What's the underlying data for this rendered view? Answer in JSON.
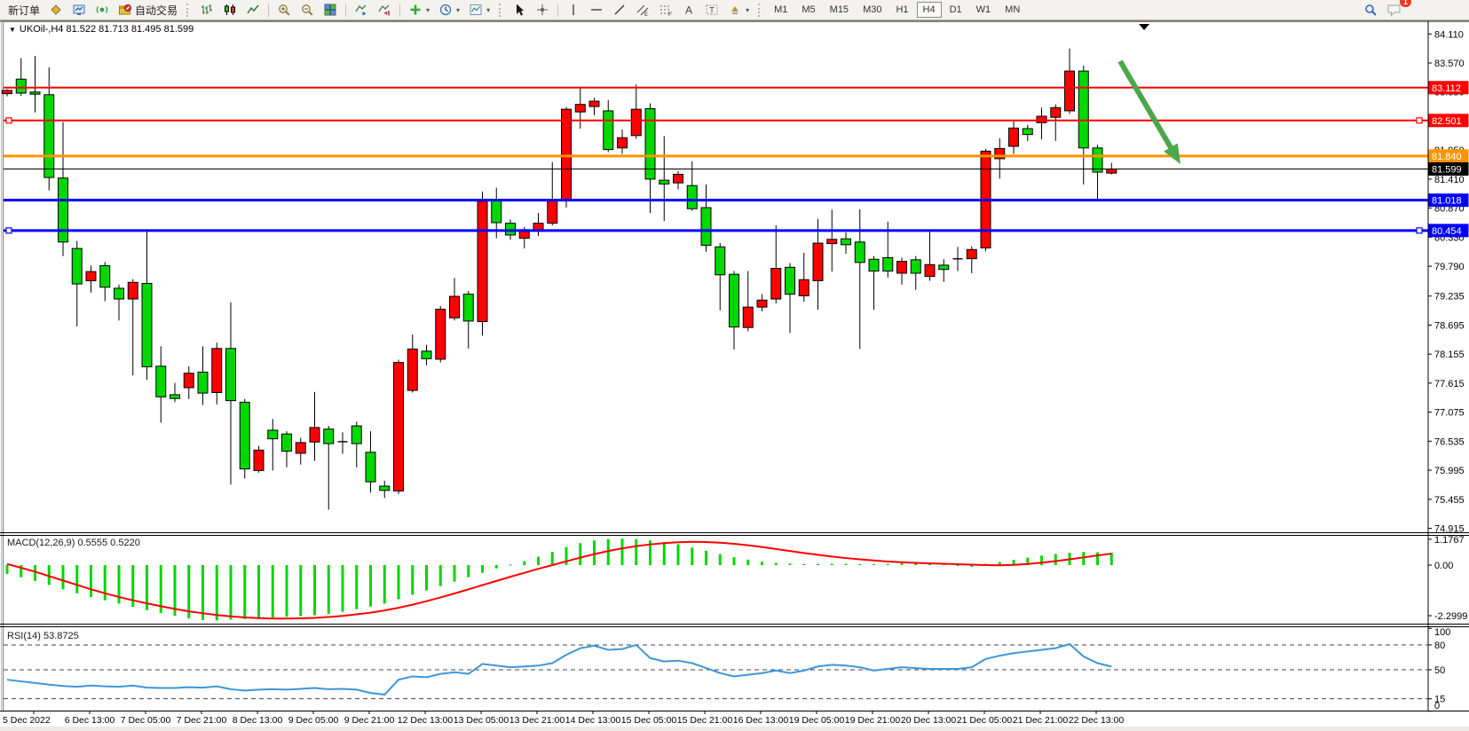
{
  "toolbar": {
    "items": [
      {
        "n": "new-order-button",
        "l": "新订单"
      },
      {
        "n": "market-watch-icon",
        "i": "market-watch-icon"
      },
      {
        "n": "data-window-icon",
        "i": "data-window-icon"
      },
      {
        "n": "signals-icon",
        "i": "signals-icon"
      },
      {
        "n": "auto-trading-button",
        "i": "auto-trading-icon",
        "l": "自动交易"
      },
      {
        "t": "grip"
      },
      {
        "n": "bar-chart-button",
        "i": "bar-chart-icon"
      },
      {
        "n": "candlestick-chart-button",
        "i": "candlestick-chart-icon"
      },
      {
        "n": "line-chart-button",
        "i": "line-chart-icon"
      },
      {
        "t": "sep"
      },
      {
        "n": "zoom-in-button",
        "i": "zoom-in-icon"
      },
      {
        "n": "zoom-out-button",
        "i": "zoom-out-icon"
      },
      {
        "n": "tile-windows-button",
        "i": "tile-windows-icon"
      },
      {
        "t": "sep"
      },
      {
        "n": "auto-scroll-button",
        "i": "auto-scroll-icon"
      },
      {
        "n": "chart-shift-button",
        "i": "chart-shift-icon"
      },
      {
        "t": "sep"
      },
      {
        "n": "indicators-button",
        "i": "indicators-icon",
        "d": true
      },
      {
        "n": "periods-button",
        "i": "clock-icon",
        "d": true
      },
      {
        "n": "templates-button",
        "i": "template-icon",
        "d": true
      },
      {
        "t": "grip"
      },
      {
        "n": "cursor-button",
        "i": "cursor-icon"
      },
      {
        "n": "crosshair-button",
        "i": "crosshair-icon"
      },
      {
        "t": "sep"
      },
      {
        "n": "vertical-line-button",
        "i": "vertical-line-icon"
      },
      {
        "n": "horizontal-line-button",
        "i": "horizontal-line-icon"
      },
      {
        "n": "trendline-button",
        "i": "trendline-icon"
      },
      {
        "n": "equidistant-channel-button",
        "i": "equidistant-channel-icon"
      },
      {
        "n": "fibonacci-button",
        "i": "fibonacci-icon"
      },
      {
        "n": "text-button",
        "i": "text-icon"
      },
      {
        "n": "label-button",
        "i": "label-icon"
      },
      {
        "n": "arrows-button",
        "i": "arrows-icon",
        "d": true
      },
      {
        "t": "grip"
      }
    ],
    "timeframes": [
      "M1",
      "M5",
      "M15",
      "M30",
      "H1",
      "H4",
      "D1",
      "W1",
      "MN"
    ],
    "active_timeframe": "H4",
    "right_items": [
      {
        "n": "search-button",
        "i": "search-icon"
      },
      {
        "n": "chat-button",
        "i": "chat-icon",
        "badge": true
      }
    ],
    "notification_count": "1"
  },
  "chart": {
    "title": "UKOil-,H4 81.522 81.713 81.495 81.599",
    "symbol": "UKOil-",
    "timeframe": "H4",
    "open": "81.522",
    "high": "81.713",
    "low": "81.495",
    "close": "81.599"
  },
  "indicators": {
    "macd": {
      "label": "MACD(12,26,9) 0.5555 0.5220",
      "main": 0.5555,
      "signal": 0.522,
      "axis": [
        {
          "v": 1.1767,
          "t": "1.1767"
        },
        {
          "v": 0,
          "t": "0.00"
        },
        {
          "v": -2.2999,
          "t": "-2.2999"
        }
      ]
    },
    "rsi": {
      "label": "RSI(14) 53.8725",
      "value": 53.8725,
      "axis": [
        {
          "v": 100,
          "t": "100",
          "dash": false
        },
        {
          "v": 80,
          "t": "80",
          "dash": true
        },
        {
          "v": 50,
          "t": "50",
          "dash": true
        },
        {
          "v": 15,
          "t": "15",
          "dash": true
        },
        {
          "v": 0,
          "t": "0",
          "dash": false
        }
      ]
    }
  },
  "hlines": [
    {
      "price": 83.112,
      "label": "83.112",
      "color": "#ff0000",
      "width": 2,
      "selected": false
    },
    {
      "price": 82.501,
      "label": "82.501",
      "color": "#ff0000",
      "width": 2,
      "selected": true
    },
    {
      "price": 81.84,
      "label": "81.840",
      "color": "#ff9400",
      "width": 3,
      "selected": false
    },
    {
      "price": 81.599,
      "label": "81.599",
      "color": "#000000",
      "width": 1,
      "selected": false
    },
    {
      "price": 81.018,
      "label": "81.018",
      "color": "#0000ff",
      "width": 3,
      "selected": false
    },
    {
      "price": 80.454,
      "label": "80.454",
      "color": "#0000ff",
      "width": 3,
      "selected": true
    }
  ],
  "price_ticks": [
    "84.110",
    "83.570",
    "83.030",
    "81.950",
    "81.410",
    "80.870",
    "80.330",
    "79.790",
    "79.235",
    "78.695",
    "78.155",
    "77.615",
    "77.075",
    "76.535",
    "75.995",
    "75.455",
    "74.915"
  ],
  "chart_data": [
    {
      "type": "candlestick",
      "symbol": "UKOil-",
      "timeframe": "H4",
      "title": "UKOil-,H4 81.522 81.713 81.495 81.599",
      "ylim": [
        74.84,
        84.35
      ],
      "y_ticks": [
        84.11,
        83.57,
        83.03,
        81.95,
        81.41,
        80.87,
        80.33,
        79.79,
        79.235,
        78.695,
        78.155,
        77.615,
        77.075,
        76.535,
        75.995,
        75.455,
        74.915
      ],
      "x_labels": [
        "5 Dec 2022",
        "6 Dec 13:00",
        "7 Dec 05:00",
        "7 Dec 21:00",
        "8 Dec 13:00",
        "9 Dec 05:00",
        "9 Dec 21:00",
        "12 Dec 13:00",
        "13 Dec 05:00",
        "13 Dec 21:00",
        "14 Dec 13:00",
        "15 Dec 05:00",
        "15 Dec 21:00",
        "16 Dec 13:00",
        "19 Dec 05:00",
        "19 Dec 21:00",
        "20 Dec 13:00",
        "21 Dec 05:00",
        "21 Dec 21:00",
        "22 Dec 13:00"
      ],
      "colors": {
        "up": "#ff0000",
        "down": "#00d800",
        "wick": "#000000"
      },
      "horizontal_lines": [
        83.112,
        82.501,
        81.84,
        81.599,
        81.018,
        80.454
      ],
      "candles": [
        [
          83.0,
          83.08,
          82.95,
          83.06
        ],
        [
          83.27,
          83.66,
          82.96,
          83.01
        ],
        [
          83.03,
          83.7,
          82.65,
          82.99
        ],
        [
          82.98,
          83.49,
          81.2,
          81.44
        ],
        [
          81.43,
          82.47,
          79.98,
          80.24
        ],
        [
          80.12,
          80.26,
          78.67,
          79.46
        ],
        [
          79.52,
          79.8,
          79.3,
          79.69
        ],
        [
          79.8,
          79.87,
          79.14,
          79.4
        ],
        [
          79.38,
          79.45,
          78.78,
          79.18
        ],
        [
          79.18,
          79.55,
          77.76,
          79.49
        ],
        [
          79.47,
          80.44,
          77.68,
          77.92
        ],
        [
          77.93,
          78.3,
          76.88,
          77.36
        ],
        [
          77.4,
          77.62,
          77.26,
          77.33
        ],
        [
          77.53,
          77.93,
          77.32,
          77.8
        ],
        [
          77.82,
          78.3,
          77.21,
          77.43
        ],
        [
          77.44,
          78.37,
          77.22,
          78.26
        ],
        [
          78.26,
          79.12,
          75.73,
          77.29
        ],
        [
          77.26,
          77.32,
          75.84,
          76.02
        ],
        [
          75.99,
          76.45,
          75.95,
          76.37
        ],
        [
          76.74,
          76.95,
          75.99,
          76.58
        ],
        [
          76.67,
          76.72,
          76.05,
          76.35
        ],
        [
          76.31,
          76.6,
          76.1,
          76.51
        ],
        [
          76.52,
          77.45,
          76.17,
          76.79
        ],
        [
          76.76,
          76.82,
          75.26,
          76.49
        ],
        [
          76.53,
          76.7,
          76.3,
          76.53
        ],
        [
          76.82,
          76.9,
          76.05,
          76.49
        ],
        [
          76.33,
          76.72,
          75.58,
          75.78
        ],
        [
          75.7,
          75.8,
          75.48,
          75.62
        ],
        [
          75.61,
          78.05,
          75.55,
          78.0
        ],
        [
          77.48,
          78.52,
          77.44,
          78.25
        ],
        [
          78.21,
          78.33,
          77.95,
          78.07
        ],
        [
          78.06,
          79.05,
          78.0,
          78.99
        ],
        [
          78.83,
          79.57,
          78.78,
          79.23
        ],
        [
          79.27,
          79.33,
          78.26,
          78.77
        ],
        [
          78.76,
          81.18,
          78.5,
          81.0
        ],
        [
          81.02,
          81.25,
          80.31,
          80.6
        ],
        [
          80.59,
          80.66,
          80.28,
          80.37
        ],
        [
          80.31,
          80.52,
          80.12,
          80.47
        ],
        [
          80.45,
          80.78,
          80.35,
          80.59
        ],
        [
          80.59,
          81.73,
          80.55,
          81.02
        ],
        [
          81.02,
          82.75,
          80.88,
          82.71
        ],
        [
          82.66,
          83.13,
          82.35,
          82.8
        ],
        [
          82.76,
          82.92,
          82.6,
          82.86
        ],
        [
          82.68,
          82.88,
          81.91,
          81.96
        ],
        [
          81.99,
          82.33,
          81.88,
          82.18
        ],
        [
          82.22,
          83.17,
          82.16,
          82.71
        ],
        [
          82.72,
          82.82,
          80.78,
          81.41
        ],
        [
          81.39,
          82.21,
          80.63,
          81.32
        ],
        [
          81.34,
          81.56,
          81.22,
          81.5
        ],
        [
          81.29,
          81.74,
          80.82,
          80.86
        ],
        [
          80.88,
          81.31,
          80.06,
          80.18
        ],
        [
          80.15,
          80.22,
          78.97,
          79.63
        ],
        [
          79.64,
          79.7,
          78.24,
          78.66
        ],
        [
          78.65,
          79.7,
          78.58,
          79.03
        ],
        [
          79.03,
          79.27,
          78.95,
          79.16
        ],
        [
          79.18,
          80.55,
          79.1,
          79.75
        ],
        [
          79.77,
          79.85,
          78.55,
          79.27
        ],
        [
          79.24,
          80.04,
          79.13,
          79.54
        ],
        [
          79.52,
          80.67,
          78.98,
          80.22
        ],
        [
          80.21,
          80.84,
          79.69,
          80.29
        ],
        [
          80.3,
          80.42,
          80.02,
          80.19
        ],
        [
          80.24,
          80.85,
          78.25,
          79.86
        ],
        [
          79.92,
          79.98,
          78.98,
          79.7
        ],
        [
          79.95,
          80.62,
          79.58,
          79.7
        ],
        [
          79.66,
          79.95,
          79.45,
          79.88
        ],
        [
          79.91,
          79.98,
          79.35,
          79.66
        ],
        [
          79.6,
          80.43,
          79.52,
          79.82
        ],
        [
          79.81,
          79.92,
          79.5,
          79.73
        ],
        [
          79.93,
          80.15,
          79.7,
          79.93
        ],
        [
          79.93,
          80.16,
          79.66,
          80.1
        ],
        [
          80.13,
          81.97,
          80.07,
          81.93
        ],
        [
          81.79,
          82.17,
          81.42,
          81.98
        ],
        [
          82.02,
          82.5,
          81.88,
          82.36
        ],
        [
          82.35,
          82.42,
          82.12,
          82.24
        ],
        [
          82.46,
          82.74,
          82.15,
          82.58
        ],
        [
          82.56,
          82.8,
          82.12,
          82.74
        ],
        [
          82.68,
          83.84,
          82.62,
          83.42
        ],
        [
          83.42,
          83.52,
          81.31,
          81.99
        ],
        [
          81.99,
          82.05,
          81.03,
          81.54
        ],
        [
          81.522,
          81.713,
          81.495,
          81.599
        ]
      ],
      "annotations": [
        {
          "type": "arrow",
          "from": [
            1262,
            69
          ],
          "to": [
            1330,
            185
          ],
          "color": "#4ca64c"
        },
        {
          "type": "shift-marker",
          "x": 1289,
          "y": 30
        }
      ]
    },
    {
      "type": "bar",
      "name": "MACD(12,26,9)",
      "last_main": 0.5555,
      "last_signal": 0.522,
      "axis_ticks": [
        1.1767,
        0,
        -2.2999
      ],
      "ylim": [
        -2.66,
        1.41
      ],
      "colors": {
        "bar": "#00d800",
        "signal": "#ff0000"
      },
      "values": [
        -0.4,
        -0.55,
        -0.72,
        -0.9,
        -1.1,
        -1.28,
        -1.45,
        -1.6,
        -1.75,
        -1.9,
        -2.05,
        -2.18,
        -2.3,
        -2.42,
        -2.5,
        -2.52,
        -2.48,
        -2.45,
        -2.42,
        -2.38,
        -2.35,
        -2.32,
        -2.28,
        -2.22,
        -2.12,
        -2.0,
        -1.88,
        -1.75,
        -1.55,
        -1.35,
        -1.15,
        -0.95,
        -0.75,
        -0.55,
        -0.35,
        -0.15,
        0.02,
        0.18,
        0.38,
        0.6,
        0.82,
        1.0,
        1.12,
        1.18,
        1.2,
        1.18,
        1.12,
        1.05,
        0.95,
        0.8,
        0.65,
        0.5,
        0.36,
        0.25,
        0.16,
        0.1,
        0.07,
        0.05,
        0.05,
        0.06,
        0.06,
        0.05,
        0.04,
        0.05,
        0.08,
        0.1,
        0.08,
        0.05,
        -0.04,
        -0.08,
        0.06,
        0.14,
        0.24,
        0.34,
        0.43,
        0.5,
        0.56,
        0.6,
        0.58,
        0.5555
      ],
      "signal": [
        0.05,
        -0.12,
        -0.3,
        -0.5,
        -0.7,
        -0.9,
        -1.1,
        -1.28,
        -1.45,
        -1.6,
        -1.74,
        -1.87,
        -1.99,
        -2.1,
        -2.19,
        -2.27,
        -2.33,
        -2.38,
        -2.41,
        -2.43,
        -2.43,
        -2.42,
        -2.4,
        -2.36,
        -2.31,
        -2.24,
        -2.16,
        -2.06,
        -1.94,
        -1.8,
        -1.64,
        -1.47,
        -1.29,
        -1.1,
        -0.91,
        -0.72,
        -0.53,
        -0.35,
        -0.17,
        0.0,
        0.17,
        0.34,
        0.5,
        0.64,
        0.76,
        0.86,
        0.94,
        1.0,
        1.04,
        1.06,
        1.05,
        1.02,
        0.97,
        0.9,
        0.82,
        0.73,
        0.64,
        0.55,
        0.47,
        0.39,
        0.32,
        0.26,
        0.21,
        0.16,
        0.13,
        0.1,
        0.08,
        0.06,
        0.04,
        0.02,
        0.0,
        -0.01,
        0.01,
        0.05,
        0.11,
        0.18,
        0.26,
        0.35,
        0.44,
        0.522
      ]
    },
    {
      "type": "line",
      "name": "RSI(14)",
      "last": 53.8725,
      "ylim": [
        0,
        100
      ],
      "levels": [
        80,
        50,
        15
      ],
      "color": "#3d96d9",
      "values": [
        38,
        36,
        34,
        32,
        30.5,
        29.5,
        31,
        30,
        29.5,
        31,
        28.5,
        28,
        28,
        29,
        28.5,
        30,
        26.5,
        25,
        26,
        26.5,
        26,
        27,
        28,
        26.5,
        27,
        26,
        22,
        20,
        38,
        42,
        41,
        45,
        47,
        45,
        57,
        55,
        53,
        54,
        55,
        58,
        68,
        76,
        79,
        74,
        75,
        80,
        64,
        60,
        61,
        58,
        52,
        46,
        42,
        44,
        46,
        49,
        46,
        49,
        54,
        56,
        55,
        53,
        49,
        51,
        53,
        52,
        51,
        51,
        51,
        53,
        63,
        67,
        70,
        72,
        74,
        76,
        81,
        66,
        58,
        53.87
      ]
    }
  ]
}
